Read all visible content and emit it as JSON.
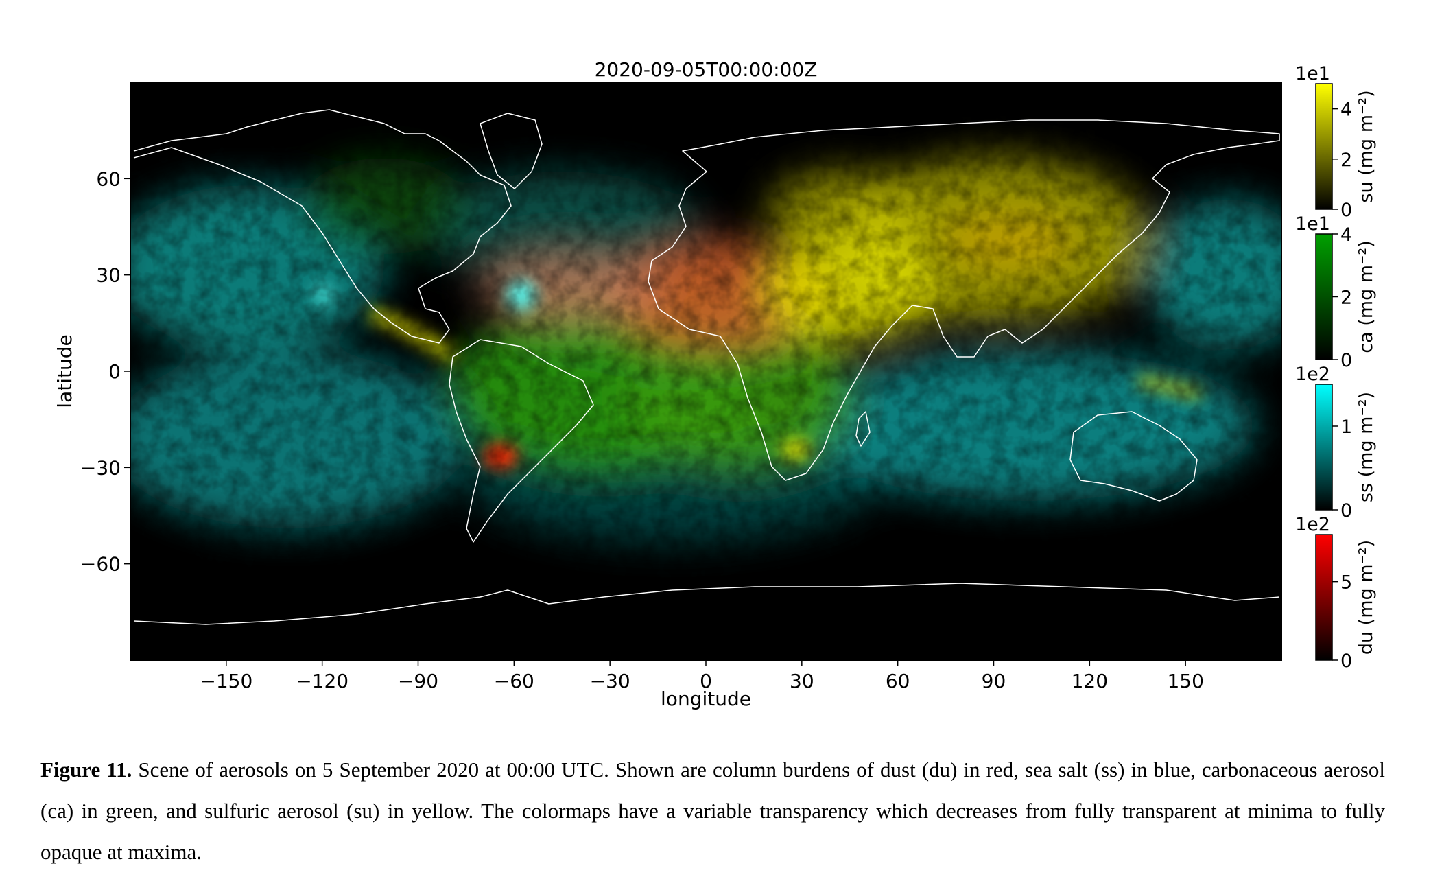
{
  "map": {
    "title": "2020-09-05T00:00:00Z",
    "xlabel": "longitude",
    "ylabel": "latitude",
    "x_ticks": [
      -150,
      -120,
      -90,
      -60,
      -30,
      0,
      30,
      60,
      90,
      120,
      150
    ],
    "x_tick_labels": [
      "−150",
      "−120",
      "−90",
      "−60",
      "−30",
      "0",
      "30",
      "60",
      "90",
      "120",
      "150"
    ],
    "y_ticks": [
      60,
      30,
      0,
      -30,
      -60
    ],
    "y_tick_labels": [
      "60",
      "30",
      "0",
      "−30",
      "−60"
    ],
    "xlim": [
      -180,
      180
    ],
    "ylim": [
      -90,
      90
    ],
    "projection": "plate carree",
    "background_color": "#000000",
    "coastline_color": "#ffffff"
  },
  "colorbars": [
    {
      "variable": "su",
      "label": "su (mg m⁻²)",
      "scale": "1e1",
      "ticks": [
        0,
        2,
        4
      ],
      "tick_labels": [
        "0",
        "2",
        "4"
      ],
      "max": 5,
      "color": "#ffff00"
    },
    {
      "variable": "ca",
      "label": "ca (mg m⁻²)",
      "scale": "1e1",
      "ticks": [
        0,
        2,
        4
      ],
      "tick_labels": [
        "0",
        "2",
        "4"
      ],
      "max": 4,
      "color": "#008000"
    },
    {
      "variable": "ss",
      "label": "ss (mg m⁻²)",
      "scale": "1e2",
      "ticks": [
        0,
        1
      ],
      "tick_labels": [
        "0",
        "1"
      ],
      "max": 1.5,
      "color": "#00ffff"
    },
    {
      "variable": "du",
      "label": "du (mg m⁻²)",
      "scale": "1e2",
      "ticks": [
        0,
        5
      ],
      "tick_labels": [
        "0",
        "5"
      ],
      "max": 8,
      "color": "#ff0000"
    }
  ],
  "caption": {
    "label": "Figure 11.",
    "text": " Scene of aerosols on 5 September 2020 at 00:00 UTC. Shown are column burdens of dust (du) in red, sea salt (ss) in blue, carbonaceous aerosol (ca) in green, and sulfuric aerosol (su) in yellow. The colormaps have a variable transparency which decreases from fully transparent at minima to fully opaque at maxima."
  }
}
